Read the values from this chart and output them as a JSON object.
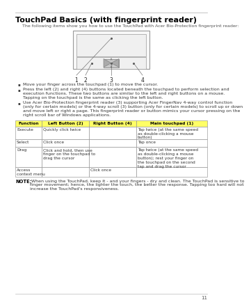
{
  "title": "TouchPad Basics (with fingerprint reader)",
  "subtitle": "The following items show you how to use the TouchPad with Acer Bio-Protection fingerprint reader:",
  "bullets": [
    "Move your finger across the touchpad (1) to move the cursor.",
    "Press the left (2) and right (4) buttons located beneath the touchpad to perform selection and\nexecution functions. These two buttons are similar to the left and right buttons on a mouse.\nTapping on the touchpad is the same as clicking the left button.",
    "Use Acer Bio-Protection fingerprint reader (3) supporting Acer FingerNav 4-way control function\n(only for certain models) or the 4-way scroll (3) button (only for certain models) to scroll up or down\nand move left or right a page. This fingerprint reader or button mimics your cursor pressing on the\nright scroll bar of Windows applications."
  ],
  "table_header": [
    "Function",
    "Left Button (2)",
    "Right Button (4)",
    "Main touchpad (1)"
  ],
  "table_header_bg": "#FFFF66",
  "table_rows": [
    [
      "Execute",
      "Quickly click twice",
      "",
      "Tap twice (at the same speed\nas double-clicking a mouse\nbutton)"
    ],
    [
      "Select",
      "Click once",
      "",
      "Tap once"
    ],
    [
      "Drag",
      "Click and hold, then use\nfinger on the touchpad to\ndrag the cursor",
      "",
      "Tap twice (at the same speed\nas double-clicking a mouse\nbutton); rest your finger on\nthe touchpad on the second\ntap and drag the cursor"
    ],
    [
      "Access\ncontext menu",
      "",
      "Click once",
      ""
    ]
  ],
  "note_bold": "NOTE:",
  "note_text": " When using the TouchPad, keep it - and your fingers - dry and clean. The TouchPad is sensitive to\nfinger movement; hence, the lighter the touch, the better the response. Tapping too hard will not\nincrease the TouchPad's responsiveness.",
  "page_number": "11",
  "top_line_color": "#BBBBBB",
  "bottom_line_color": "#BBBBBB",
  "bg_color": "#FFFFFF",
  "title_color": "#000000",
  "text_color": "#333333"
}
